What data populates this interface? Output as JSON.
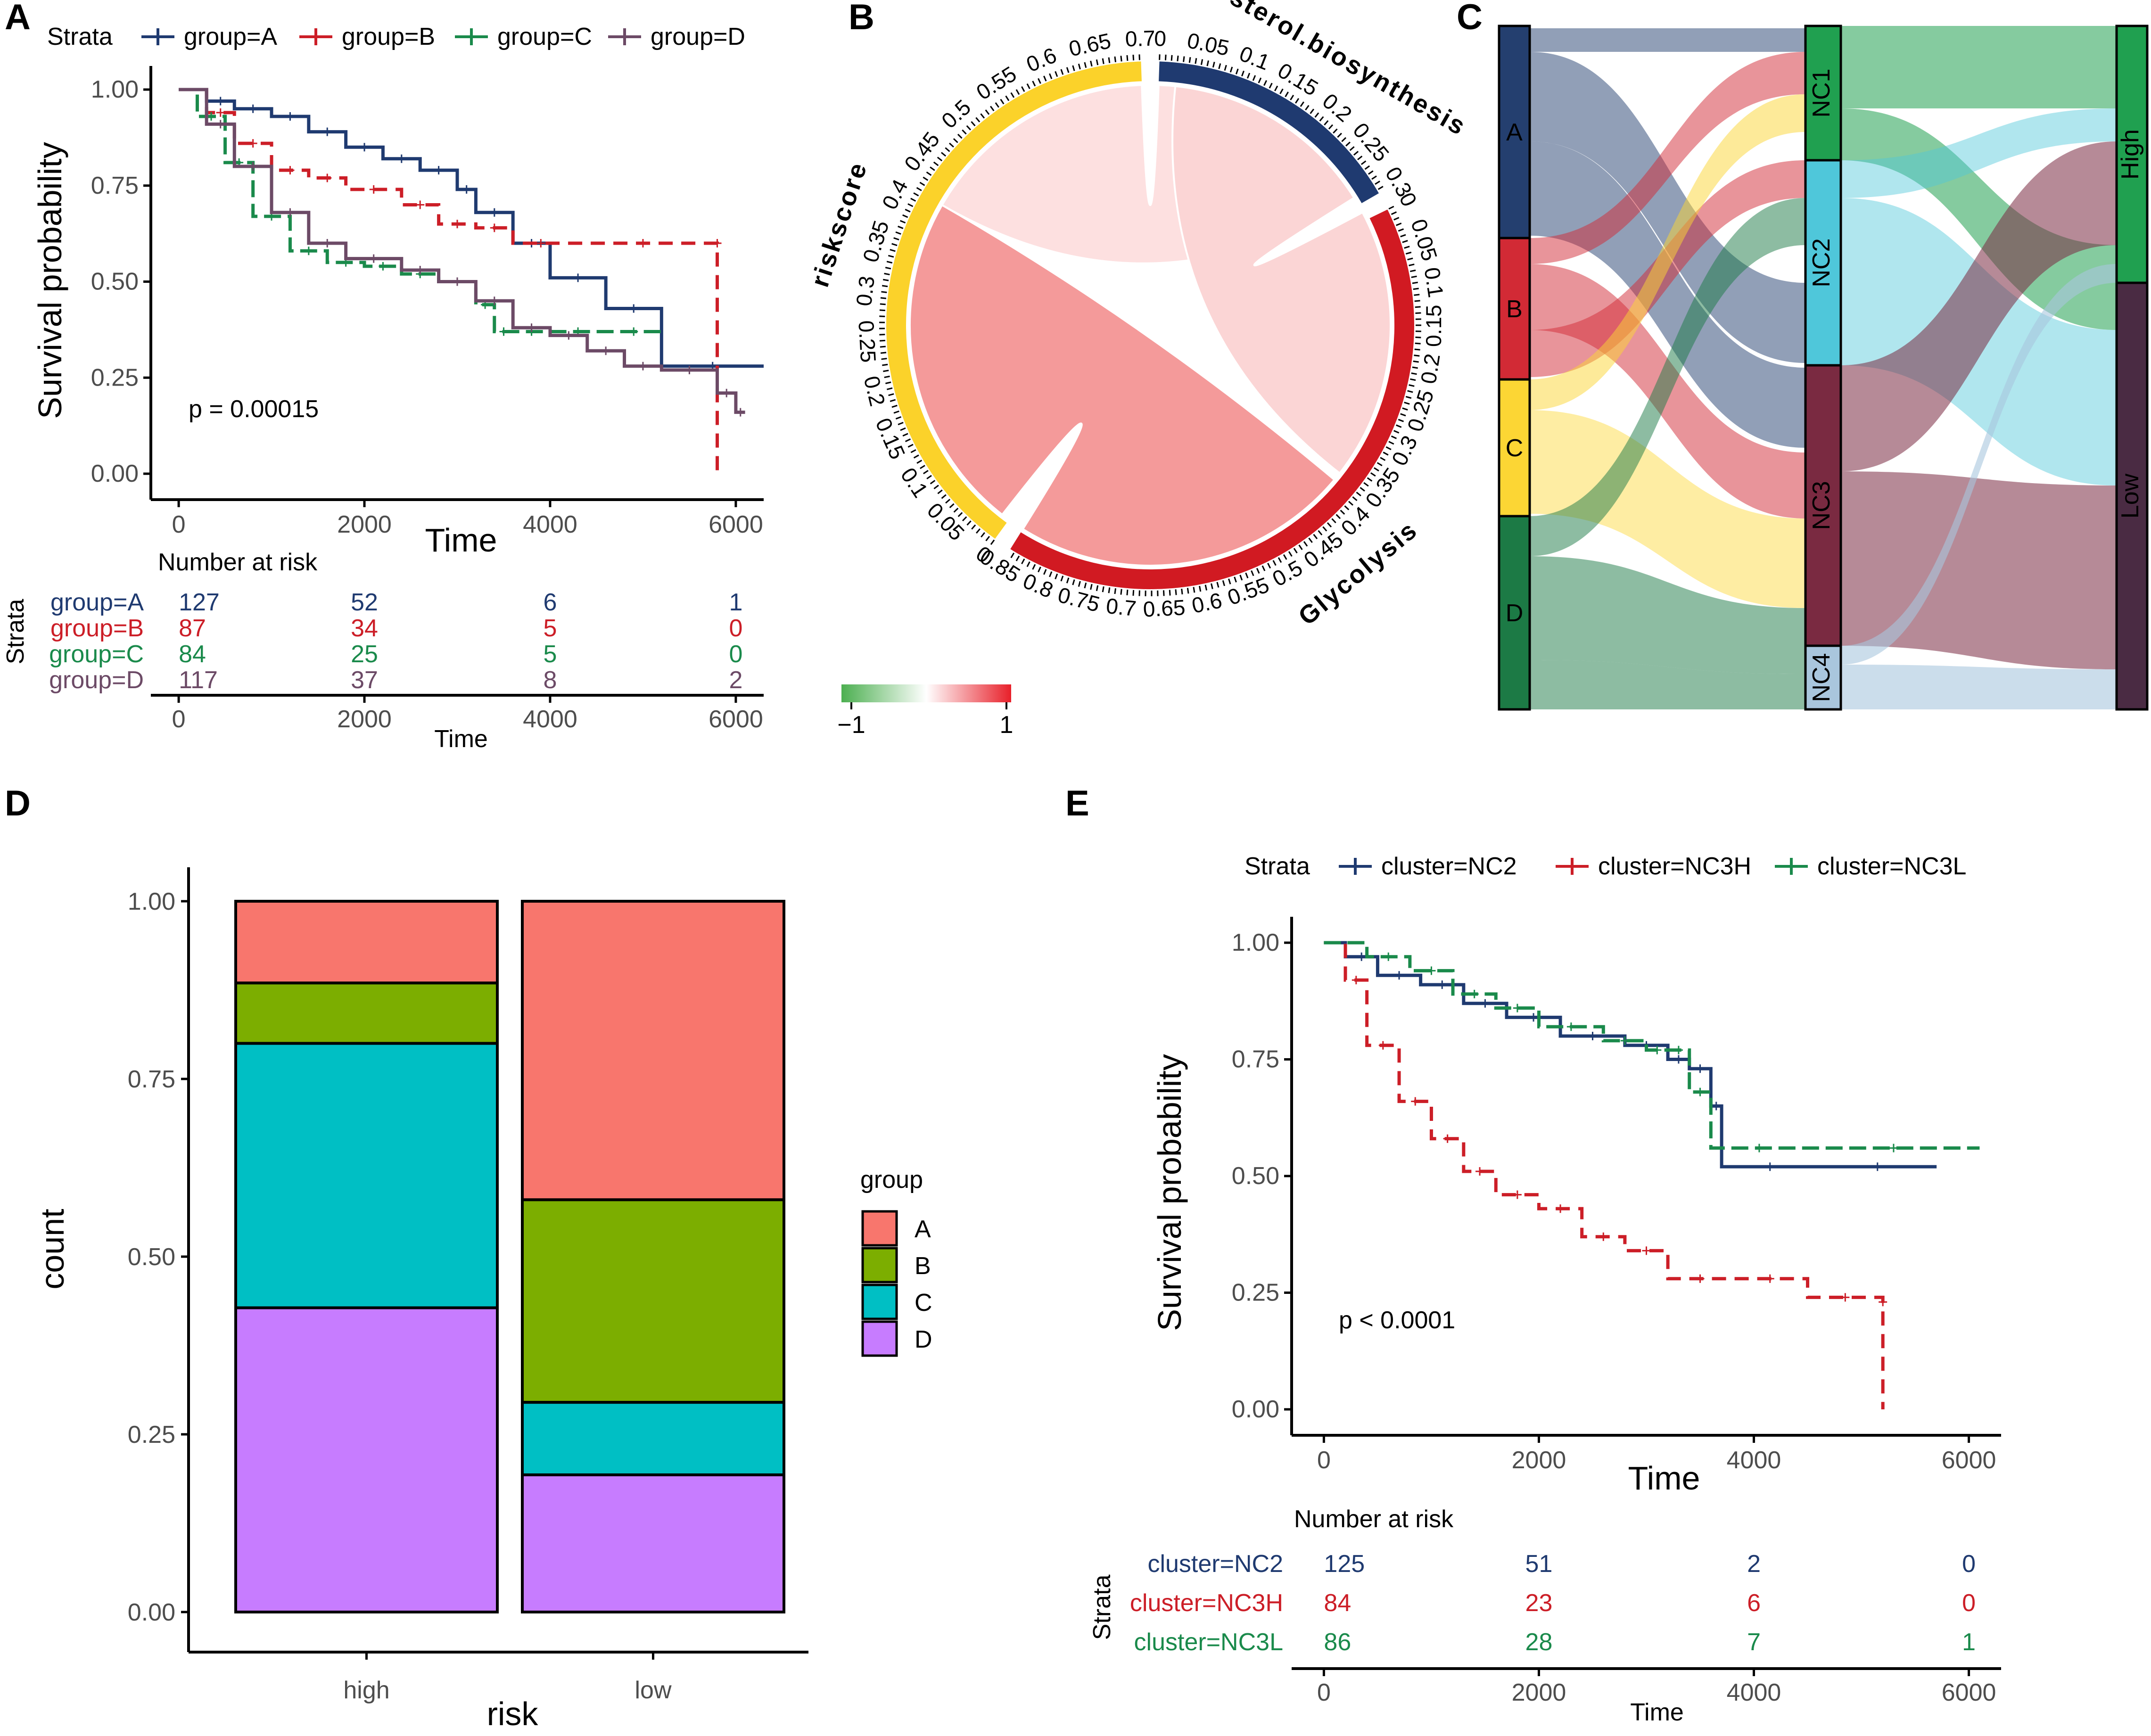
{
  "panels": {
    "A": {
      "label": "A"
    },
    "B": {
      "label": "B"
    },
    "C": {
      "label": "C"
    },
    "D": {
      "label": "D"
    },
    "E": {
      "label": "E"
    }
  },
  "colors": {
    "groupA": "#1f3a70",
    "groupB": "#cc1e27",
    "groupC": "#1a8a4b",
    "groupD": "#6c4a66",
    "barA": "#f8766d",
    "barB": "#7cae00",
    "barC": "#00bfc4",
    "barD": "#c77cff",
    "chordYellow": "#fbd22a",
    "chordRed": "#d11a22",
    "chordBlue": "#1f3a70",
    "sankeyA": "#243f6f",
    "sankeyB": "#d22a35",
    "sankeyC": "#fcd634",
    "sankeyD": "#1c7a45",
    "sankeyNC1": "#20a050",
    "sankeyNC2": "#4fc7da",
    "sankeyNC3": "#7a2a41",
    "sankeyNC4": "#a9c6dd",
    "sankeyHigh": "#20a050",
    "sankeyLow": "#4a2b43"
  },
  "chart_data": [
    {
      "id": "A",
      "type": "line",
      "subtype": "kaplan-meier",
      "legend_title": "Strata",
      "legend": [
        "group=A",
        "group=B",
        "group=C",
        "group=D"
      ],
      "xlabel": "Time",
      "ylabel": "Survival probability",
      "xlim": [
        -300,
        6300
      ],
      "ylim": [
        0,
        1
      ],
      "xticks": [
        "0",
        "2000",
        "4000",
        "6000"
      ],
      "yticks": [
        "0.00",
        "0.25",
        "0.50",
        "0.75",
        "1.00"
      ],
      "annotation": "p = 0.00015",
      "series": [
        {
          "name": "group=A",
          "x": [
            0,
            300,
            600,
            1000,
            1400,
            1800,
            2200,
            2600,
            3000,
            3200,
            3600,
            4000,
            4600,
            5200,
            6300
          ],
          "y": [
            1.0,
            0.97,
            0.95,
            0.93,
            0.89,
            0.85,
            0.82,
            0.79,
            0.74,
            0.68,
            0.6,
            0.51,
            0.43,
            0.28,
            0.28
          ]
        },
        {
          "name": "group=B",
          "x": [
            0,
            300,
            600,
            1000,
            1400,
            1800,
            2400,
            2800,
            3200,
            3600,
            4200,
            5800,
            5800
          ],
          "y": [
            1.0,
            0.94,
            0.86,
            0.79,
            0.77,
            0.74,
            0.7,
            0.65,
            0.64,
            0.6,
            0.6,
            0.6,
            0.0
          ]
        },
        {
          "name": "group=C",
          "x": [
            0,
            200,
            500,
            800,
            1200,
            1600,
            2000,
            2400,
            2800,
            3200,
            3400,
            3600,
            4000,
            4600,
            5200
          ],
          "y": [
            1.0,
            0.93,
            0.81,
            0.67,
            0.58,
            0.55,
            0.54,
            0.52,
            0.5,
            0.44,
            0.37,
            0.37,
            0.37,
            0.37,
            0.37
          ]
        },
        {
          "name": "group=D",
          "x": [
            0,
            300,
            600,
            1000,
            1400,
            1800,
            2400,
            2800,
            3200,
            3600,
            4000,
            4400,
            4800,
            5200,
            5800,
            6000,
            6100
          ],
          "y": [
            1.0,
            0.91,
            0.8,
            0.68,
            0.6,
            0.56,
            0.53,
            0.5,
            0.45,
            0.38,
            0.36,
            0.32,
            0.28,
            0.27,
            0.21,
            0.16,
            0.16
          ]
        }
      ],
      "risk_table": {
        "title": "Number at risk",
        "y_title": "Strata",
        "xlabel": "Time",
        "rows": [
          {
            "name": "group=A",
            "values": [
              "127",
              "52",
              "6",
              "1"
            ]
          },
          {
            "name": "group=B",
            "values": [
              "87",
              "34",
              "5",
              "0"
            ]
          },
          {
            "name": "group=C",
            "values": [
              "84",
              "25",
              "5",
              "0"
            ]
          },
          {
            "name": "group=D",
            "values": [
              "117",
              "37",
              "8",
              "2"
            ]
          }
        ]
      }
    },
    {
      "id": "B",
      "type": "chord",
      "sectors": [
        {
          "name": "riskscore",
          "ticks": [
            "0",
            "0.05",
            "0.1",
            "0.15",
            "0.2",
            "0.25",
            "0.3",
            "0.35",
            "0.4",
            "0.45",
            "0.5",
            "0.55",
            "0.6",
            "0.65",
            "0.7"
          ]
        },
        {
          "name": "Cholesterol.biosynthesis",
          "ticks": [
            "0",
            "0.05",
            "0.1",
            "0.15",
            "0.2",
            "0.25",
            "0.3"
          ]
        },
        {
          "name": "Glycolysis",
          "ticks": [
            "0",
            "0.05",
            "0.1",
            "0.15",
            "0.2",
            "0.25",
            "0.3",
            "0.35",
            "0.4",
            "0.45",
            "0.5",
            "0.55",
            "0.6",
            "0.65",
            "0.7",
            "0.75",
            "0.8",
            "0.85"
          ]
        }
      ],
      "colorbar": {
        "min": "−1",
        "max": "1"
      }
    },
    {
      "id": "C",
      "type": "sankey",
      "axes": [
        {
          "nodes": [
            "A",
            "B",
            "C",
            "D"
          ]
        },
        {
          "nodes": [
            "NC1",
            "NC2",
            "NC3",
            "NC4"
          ]
        },
        {
          "nodes": [
            "High",
            "Low"
          ]
        }
      ]
    },
    {
      "id": "D",
      "type": "bar",
      "subtype": "stacked-proportion",
      "categories": [
        "high",
        "low"
      ],
      "xlabel": "risk",
      "ylabel": "count",
      "ylim": [
        0,
        1
      ],
      "yticks": [
        "0.00",
        "0.25",
        "0.50",
        "0.75",
        "1.00"
      ],
      "legend_title": "group",
      "series": [
        {
          "name": "A",
          "values": [
            0.115,
            0.42
          ]
        },
        {
          "name": "B",
          "values": [
            0.085,
            0.285
          ]
        },
        {
          "name": "C",
          "values": [
            0.372,
            0.102
          ]
        },
        {
          "name": "D",
          "values": [
            0.428,
            0.193
          ]
        }
      ]
    },
    {
      "id": "E",
      "type": "line",
      "subtype": "kaplan-meier",
      "legend_title": "Strata",
      "legend": [
        "cluster=NC2",
        "cluster=NC3H",
        "cluster=NC3L"
      ],
      "xlabel": "Time",
      "ylabel": "Survival probability",
      "xlim": [
        -300,
        6300
      ],
      "ylim": [
        0,
        1
      ],
      "xticks": [
        "0",
        "2000",
        "4000",
        "6000"
      ],
      "yticks": [
        "0.00",
        "0.25",
        "0.50",
        "0.75",
        "1.00"
      ],
      "annotation": "p < 0.0001",
      "series": [
        {
          "name": "cluster=NC2",
          "x": [
            0,
            200,
            500,
            900,
            1300,
            1700,
            2200,
            2800,
            3200,
            3400,
            3600,
            3700,
            4600,
            5700
          ],
          "y": [
            1.0,
            0.97,
            0.93,
            0.91,
            0.87,
            0.84,
            0.8,
            0.78,
            0.75,
            0.73,
            0.65,
            0.52,
            0.52,
            0.52
          ]
        },
        {
          "name": "cluster=NC3H",
          "x": [
            0,
            200,
            400,
            700,
            1000,
            1300,
            1600,
            2000,
            2400,
            2800,
            3200,
            3800,
            4500,
            5200,
            5200
          ],
          "y": [
            1.0,
            0.92,
            0.78,
            0.66,
            0.58,
            0.51,
            0.46,
            0.43,
            0.37,
            0.34,
            0.28,
            0.28,
            0.24,
            0.23,
            0.0
          ]
        },
        {
          "name": "cluster=NC3L",
          "x": [
            0,
            400,
            800,
            1200,
            1600,
            2000,
            2600,
            3000,
            3200,
            3400,
            3600,
            4500,
            6100
          ],
          "y": [
            1.0,
            0.97,
            0.94,
            0.89,
            0.86,
            0.82,
            0.79,
            0.77,
            0.77,
            0.68,
            0.56,
            0.56,
            0.56
          ]
        }
      ],
      "risk_table": {
        "title": "Number at risk",
        "y_title": "Strata",
        "xlabel": "Time",
        "rows": [
          {
            "name": "cluster=NC2",
            "values": [
              "125",
              "51",
              "2",
              "0"
            ]
          },
          {
            "name": "cluster=NC3H",
            "values": [
              "84",
              "23",
              "6",
              "0"
            ]
          },
          {
            "name": "cluster=NC3L",
            "values": [
              "86",
              "28",
              "7",
              "1"
            ]
          }
        ]
      }
    }
  ]
}
